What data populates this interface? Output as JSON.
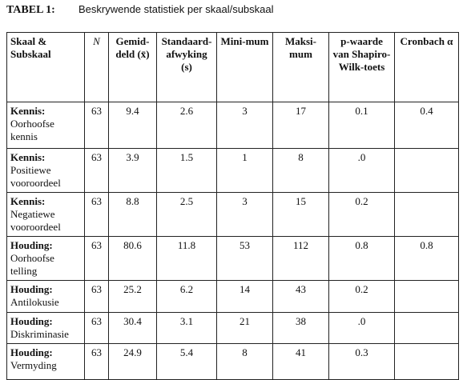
{
  "caption": {
    "label": "TABEL 1:",
    "title": "Beskrywende statistiek per skaal/subskaal"
  },
  "table": {
    "header": [
      "Skaal & Subskaal",
      "N",
      "Gemid-deld (x̄)",
      "Standaard-afwyking (s)",
      "Mini-mum",
      "Maksi-mum",
      "p-waarde van Shapiro-Wilk-toets",
      "Cronbach α"
    ],
    "rows": [
      {
        "group": "Kennis:",
        "scale": "Oorhoofse kennis",
        "cells": [
          "63",
          "9.4",
          "2.6",
          "3",
          "17",
          "0.1",
          "0.4"
        ]
      },
      {
        "group": "Kennis:",
        "scale": "Positiewe vooroordeel",
        "cells": [
          "63",
          "3.9",
          "1.5",
          "1",
          "8",
          ".0",
          null
        ]
      },
      {
        "group": "Kennis:",
        "scale": "Negatiewe vooroordeel",
        "cells": [
          "63",
          "8.8",
          "2.5",
          "3",
          "15",
          "0.2",
          null
        ]
      },
      {
        "group": "Houding:",
        "scale": "Oorhoofse telling",
        "cells": [
          "63",
          "80.6",
          "11.8",
          "53",
          "112",
          "0.8",
          "0.8"
        ]
      },
      {
        "group": "Houding:",
        "scale": "Antilokusie",
        "cells": [
          "63",
          "25.2",
          "6.2",
          "14",
          "43",
          "0.2",
          null
        ]
      },
      {
        "group": "Houding:",
        "scale": "Diskriminasie",
        "cells": [
          "63",
          "30.4",
          "3.1",
          "21",
          "38",
          ".0",
          null
        ]
      },
      {
        "group": "Houding:",
        "scale": "Vermyding",
        "cells": [
          "63",
          "24.9",
          "5.4",
          "8",
          "41",
          "0.3",
          null
        ]
      }
    ]
  }
}
